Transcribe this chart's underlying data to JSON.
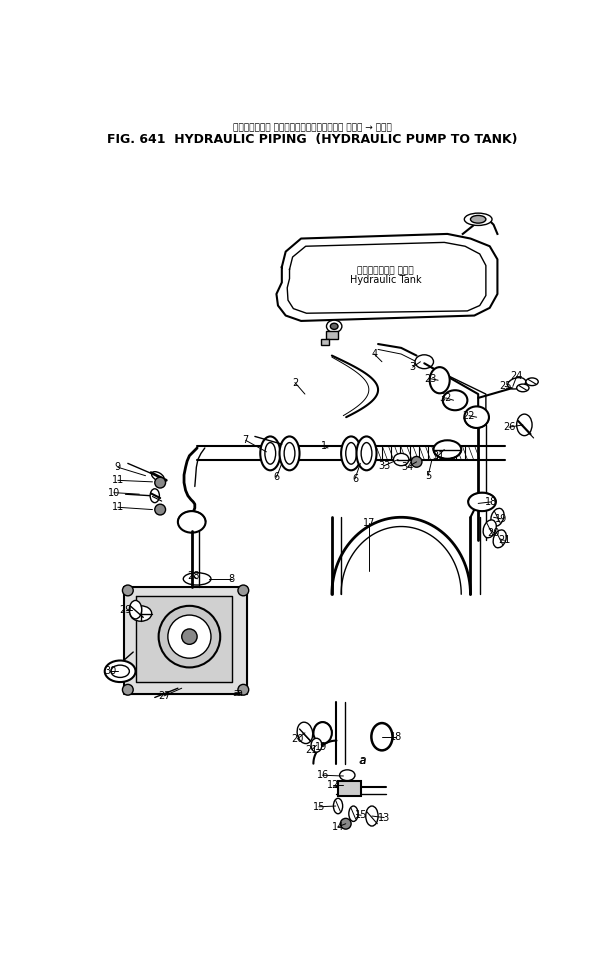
{
  "title_line1": "ハイドロリック パイピング　ハイドロリック ポンプ → タンク",
  "title_line2": "FIG. 641  HYDRAULIC PIPING  (HYDRAULIC PUMP TO TANK)",
  "bg_color": "#ffffff",
  "line_color": "#000000",
  "label_color": "#000000",
  "fig_width": 6.1,
  "fig_height": 9.74,
  "dpi": 100,
  "annotation_hydraulic_tank_ja": "ハイドロリック タンク",
  "annotation_hydraulic_tank_en": "Hydraulic Tank"
}
